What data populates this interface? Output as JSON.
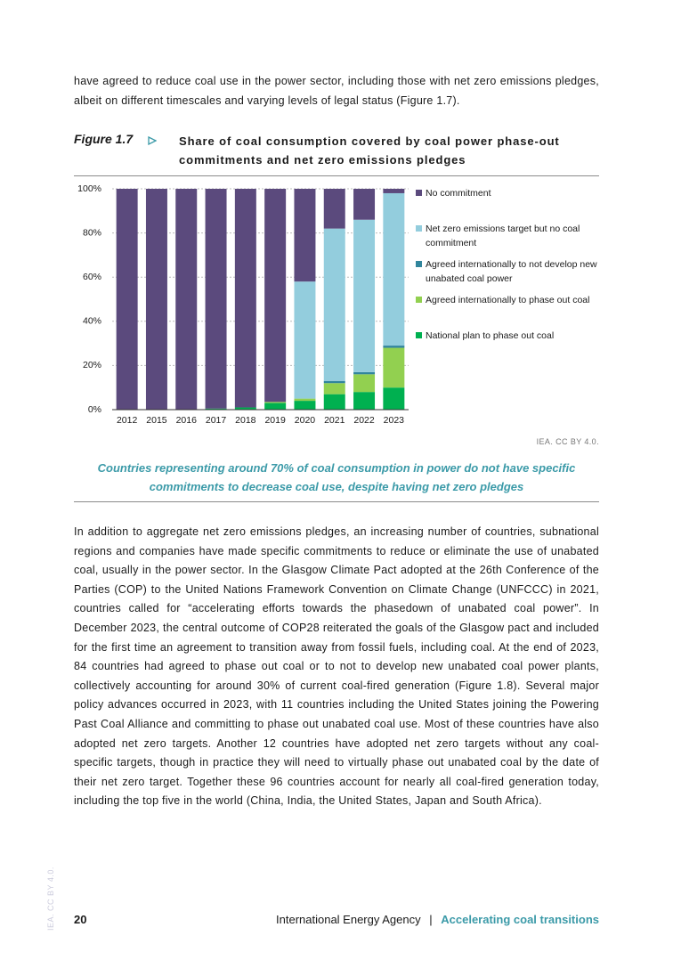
{
  "intro_text": "have agreed to reduce coal use in the power sector, including those with net zero emissions pledges, albeit on different timescales and varying levels of legal status (Figure 1.7).",
  "figure": {
    "label": "Figure 1.7",
    "source": "IEA. CC BY 4.0.",
    "caption": "Countries representing around 70% of coal consumption in power do not have specific commitments to decrease coal use, despite having net zero pledges"
  },
  "chart_data": {
    "type": "stacked_bar",
    "title": "Share of coal consumption covered by coal power phase-out commitments and net zero emissions pledges",
    "categories": [
      "2012",
      "2015",
      "2016",
      "2017",
      "2018",
      "2019",
      "2020",
      "2021",
      "2022",
      "2023"
    ],
    "series": [
      {
        "name": "National plan to phase out coal",
        "color": "#00b050",
        "values": [
          0,
          0,
          0,
          0.5,
          1,
          3,
          4,
          7,
          8,
          10
        ]
      },
      {
        "name": "Agreed internationally to phase out coal",
        "color": "#92d050",
        "values": [
          0,
          0,
          0,
          0,
          0,
          0.5,
          1,
          5,
          8,
          18
        ]
      },
      {
        "name": "Agreed internationally to not develop new unabated coal power",
        "color": "#31859c",
        "values": [
          0,
          0,
          0,
          0,
          0,
          0,
          0,
          1,
          1,
          1
        ]
      },
      {
        "name": "Net zero emissions target but no coal commitment",
        "color": "#93cddd",
        "values": [
          0,
          0,
          0,
          0,
          0,
          0,
          53,
          69,
          69,
          69
        ]
      },
      {
        "name": "No commitment",
        "color": "#5b4a7d",
        "values": [
          100,
          100,
          100,
          99.5,
          99,
          96.5,
          42,
          18,
          14,
          2
        ]
      }
    ],
    "ylim": [
      0,
      100
    ],
    "yticks": [
      {
        "value": 0,
        "label": "0%"
      },
      {
        "value": 20,
        "label": "20%"
      },
      {
        "value": 40,
        "label": "40%"
      },
      {
        "value": 60,
        "label": "60%"
      },
      {
        "value": 80,
        "label": "80%"
      },
      {
        "value": 100,
        "label": "100%"
      }
    ],
    "grid": true,
    "legend": "right"
  },
  "body_text": "In addition to aggregate net zero emissions pledges, an increasing number of countries, subnational regions and companies have made specific commitments to reduce or eliminate the use of unabated coal, usually in the power sector. In the Glasgow Climate Pact adopted at the 26th Conference of the Parties (COP) to the United Nations Framework Convention on Climate Change (UNFCCC) in 2021, countries called for “accelerating efforts towards the phasedown of unabated coal power”. In December 2023, the central outcome of COP28 reiterated the goals of the Glasgow pact and included for the first time an agreement to transition away from fossil fuels, including coal. At the end of 2023, 84 countries had agreed to phase out coal or to not to develop new unabated coal power plants, collectively accounting for around 30% of current coal-fired generation (Figure 1.8). Several major policy advances occurred in 2023, with 11 countries including the United States joining the Powering Past Coal Alliance and committing to phase out unabated coal use. Most of these countries have also adopted net zero targets. Another 12 countries have adopted net zero targets without any coal-specific targets, though in practice they will need to virtually phase out unabated coal by the date of their net zero target. Together these 96 countries account for nearly all coal-fired generation today, including the top five in the world (China, India, the United States, Japan and South Africa).",
  "footer": {
    "page_number": "20",
    "organization": "International Energy Agency",
    "separator": "|",
    "report": "Accelerating coal transitions",
    "side_note": "IEA. CC BY 4.0."
  }
}
